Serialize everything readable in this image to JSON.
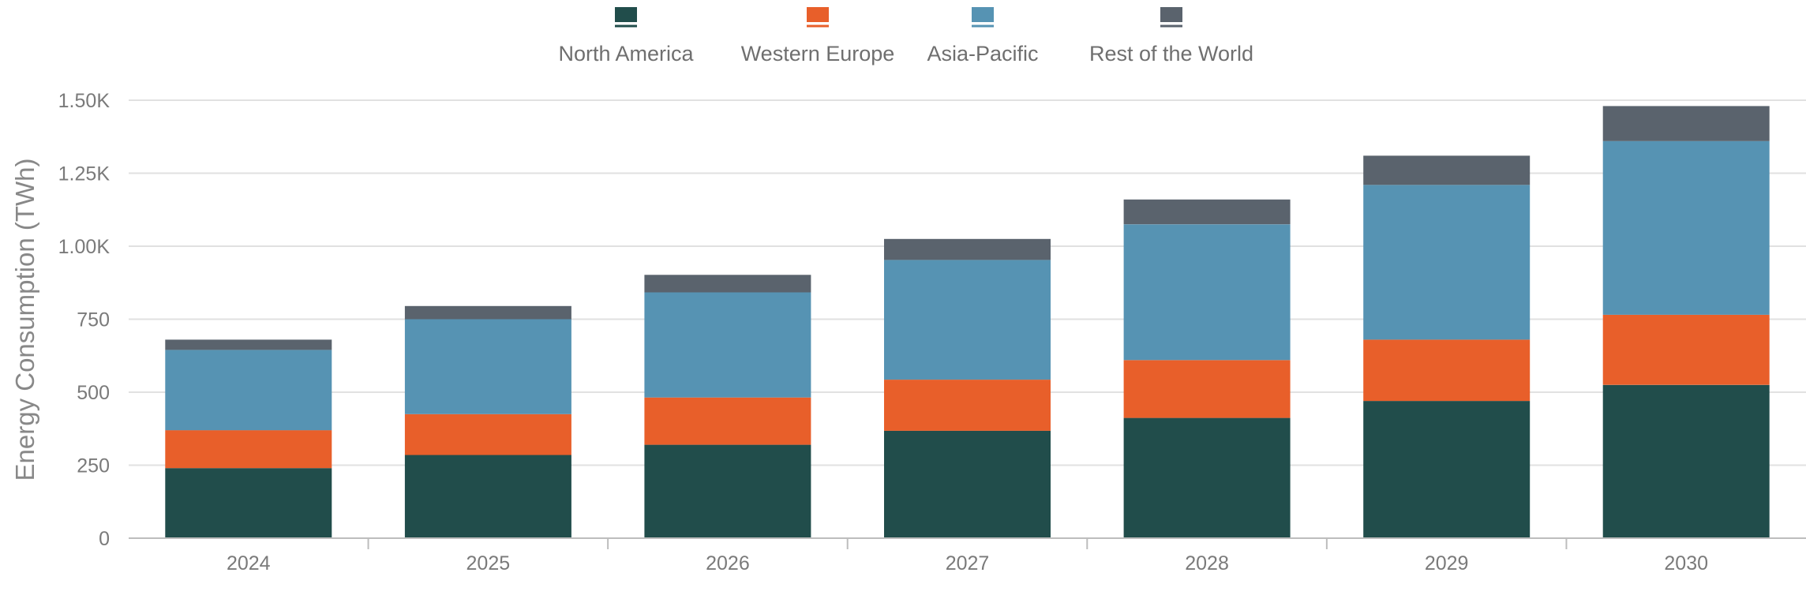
{
  "chart_data": {
    "type": "bar",
    "stacked": true,
    "categories": [
      "2024",
      "2025",
      "2026",
      "2027",
      "2028",
      "2029",
      "2030"
    ],
    "series": [
      {
        "name": "North America",
        "color": "#214d4b",
        "values": [
          240,
          285,
          320,
          368,
          412,
          470,
          525
        ]
      },
      {
        "name": "Western Europe",
        "color": "#e85f2a",
        "values": [
          130,
          140,
          162,
          175,
          198,
          210,
          240
        ]
      },
      {
        "name": "Asia-Pacific",
        "color": "#5693b3",
        "values": [
          275,
          325,
          360,
          410,
          465,
          530,
          595
        ]
      },
      {
        "name": "Rest of the World",
        "color": "#5a636d",
        "values": [
          35,
          45,
          60,
          72,
          85,
          100,
          120
        ]
      }
    ],
    "xlabel": "",
    "ylabel": "Energy Consumption (TWh)",
    "ylim": [
      0,
      1500
    ],
    "yticks": [
      0,
      250,
      500,
      750,
      1000,
      1250,
      1500
    ],
    "ytick_labels": [
      "0",
      "250",
      "500",
      "750",
      "1.00K",
      "1.25K",
      "1.50K"
    ],
    "grid": true,
    "legend_position": "top"
  }
}
